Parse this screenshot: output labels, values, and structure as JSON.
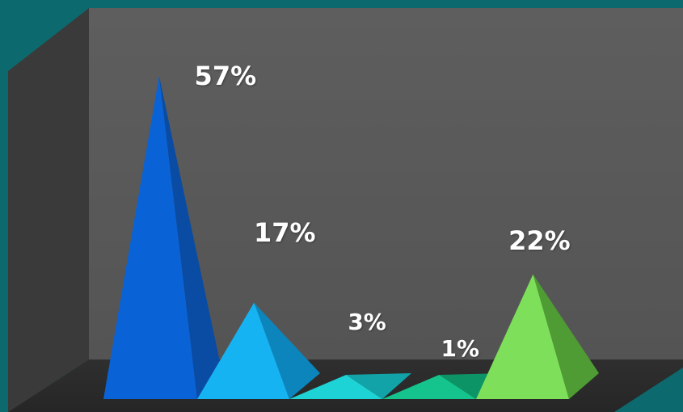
{
  "chart_data": {
    "type": "bar",
    "shape": "3d-pyramid",
    "categories": [
      "",
      "",
      "",
      "",
      ""
    ],
    "values": [
      57,
      17,
      3,
      1,
      22
    ],
    "labels": [
      "57%",
      "17%",
      "3%",
      "1%",
      "22%"
    ],
    "unit": "%",
    "title": "",
    "xlabel": "",
    "ylabel": "",
    "ylim": [
      0,
      60
    ],
    "grid": false,
    "legend": "none",
    "colors": {
      "pyramids": [
        {
          "front": "#0a63d6",
          "side": "#0a4ba3"
        },
        {
          "front": "#16b3f2",
          "side": "#0c85bd"
        },
        {
          "front": "#1ed3d6",
          "side": "#12a3a8"
        },
        {
          "front": "#15c48c",
          "side": "#0c9466"
        },
        {
          "front": "#7ee05a",
          "side": "#4e9c33"
        }
      ],
      "back_wall": "#5a5a5a",
      "side_wall": "#3a3a3a",
      "floor": "#2b2b2b",
      "frame": "#0c6a6e",
      "label_text": "#ffffff"
    }
  }
}
